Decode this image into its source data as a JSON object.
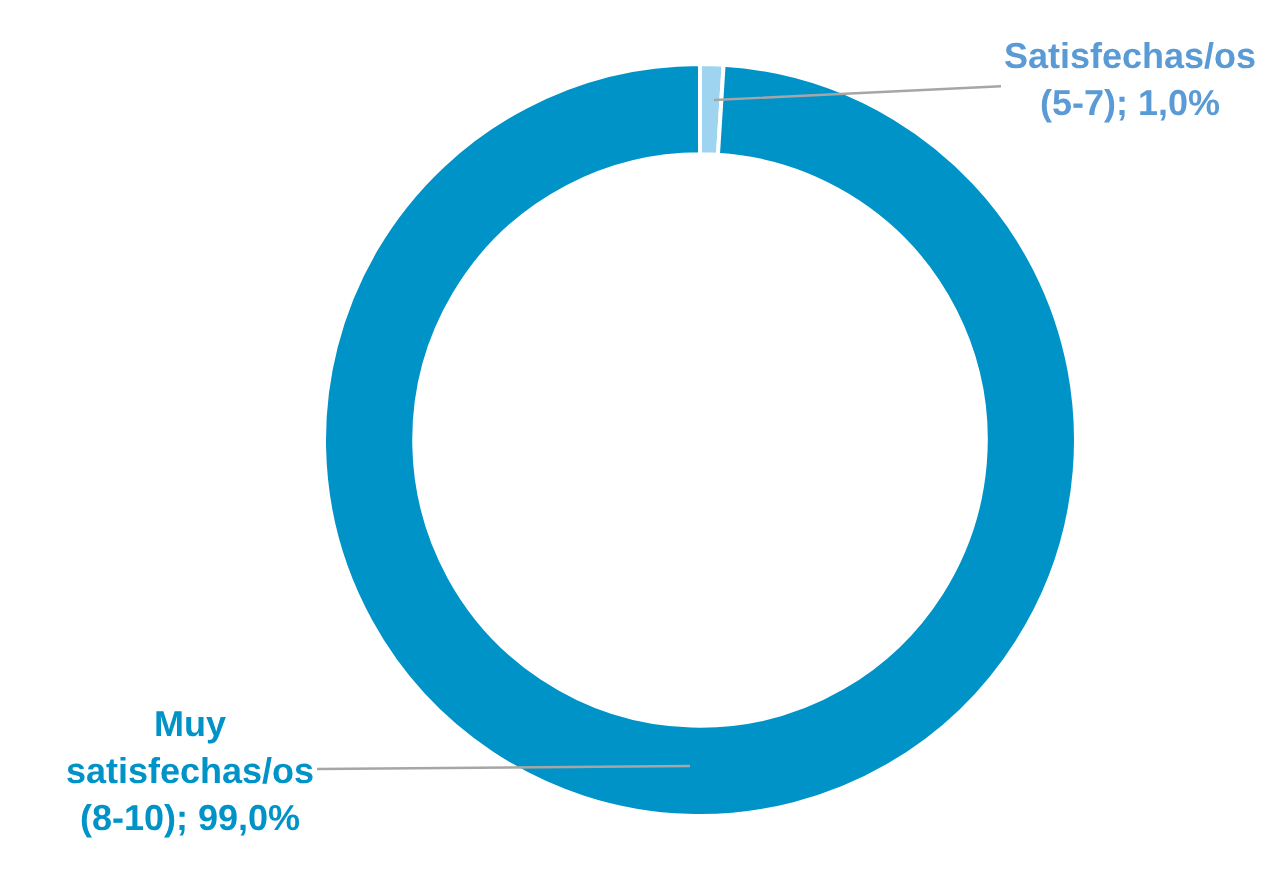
{
  "chart_data": {
    "type": "donut",
    "categories": [
      "Satisfechas/os (5-7)",
      "Muy satisfechas/os (8-10)"
    ],
    "values": [
      1.0,
      99.0
    ],
    "value_labels": [
      "1,0%",
      "99,0%"
    ],
    "colors": [
      "#9fd4f0",
      "#0093c8"
    ],
    "legend": false
  }
}
